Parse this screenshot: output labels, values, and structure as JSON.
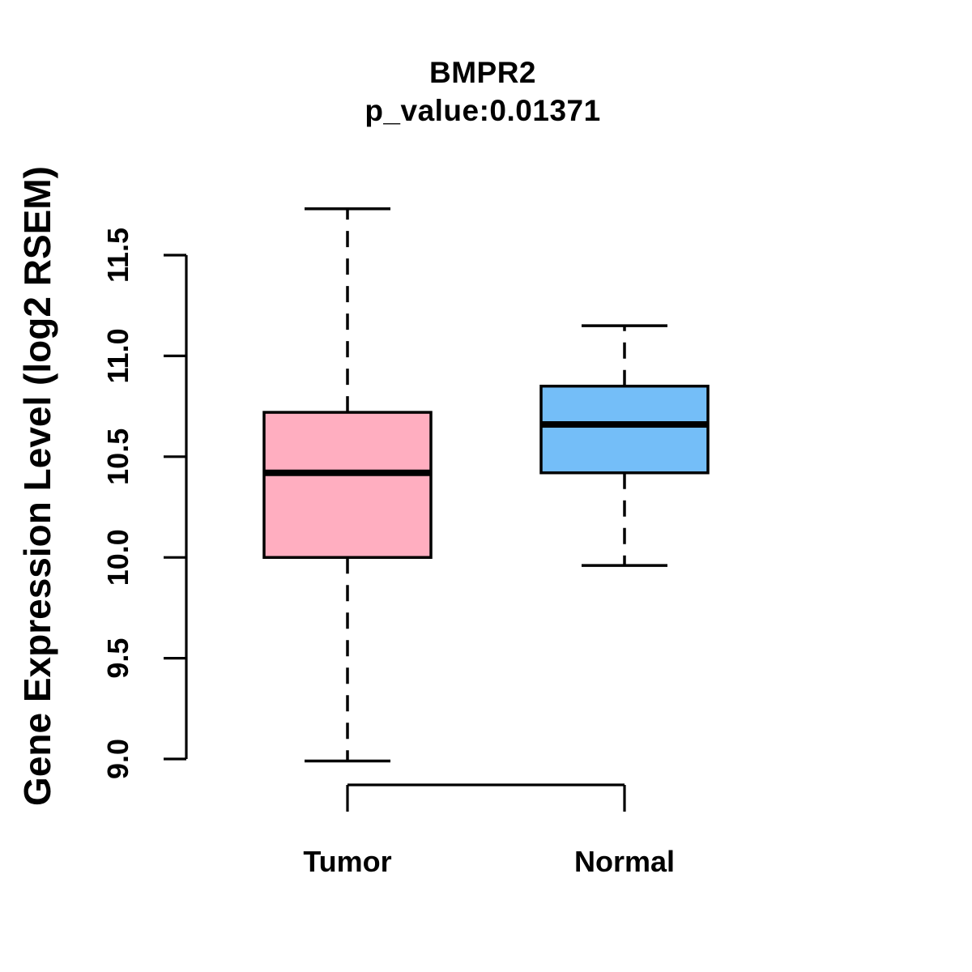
{
  "chart_data": {
    "type": "boxplot",
    "title": "BMPR2",
    "subtitle": "p_value:0.01371",
    "p_value": 0.01371,
    "ylabel": "Gene Expression Level (log2 RSEM)",
    "xlabel": "",
    "categories": [
      "Tumor",
      "Normal"
    ],
    "y_ticks": [
      9.0,
      9.5,
      10.0,
      10.5,
      11.0,
      11.5
    ],
    "y_tick_labels": [
      "9.0",
      "9.5",
      "10.0",
      "10.5",
      "11.0",
      "11.5"
    ],
    "ylim": [
      8.85,
      11.85
    ],
    "grid": false,
    "legend_position": "none",
    "series": [
      {
        "name": "Tumor",
        "box_color": "#FFAEC0",
        "whisker_low": 8.99,
        "q1": 10.0,
        "median": 10.42,
        "q3": 10.72,
        "whisker_high": 11.73
      },
      {
        "name": "Normal",
        "box_color": "#74BEF8",
        "whisker_low": 9.96,
        "q1": 10.42,
        "median": 10.66,
        "q3": 10.85,
        "whisker_high": 11.15
      }
    ],
    "colors": {
      "stroke": "#000000",
      "background": "#FFFFFF",
      "tumor_fill": "#FFAEC0",
      "normal_fill": "#74BEF8"
    }
  }
}
